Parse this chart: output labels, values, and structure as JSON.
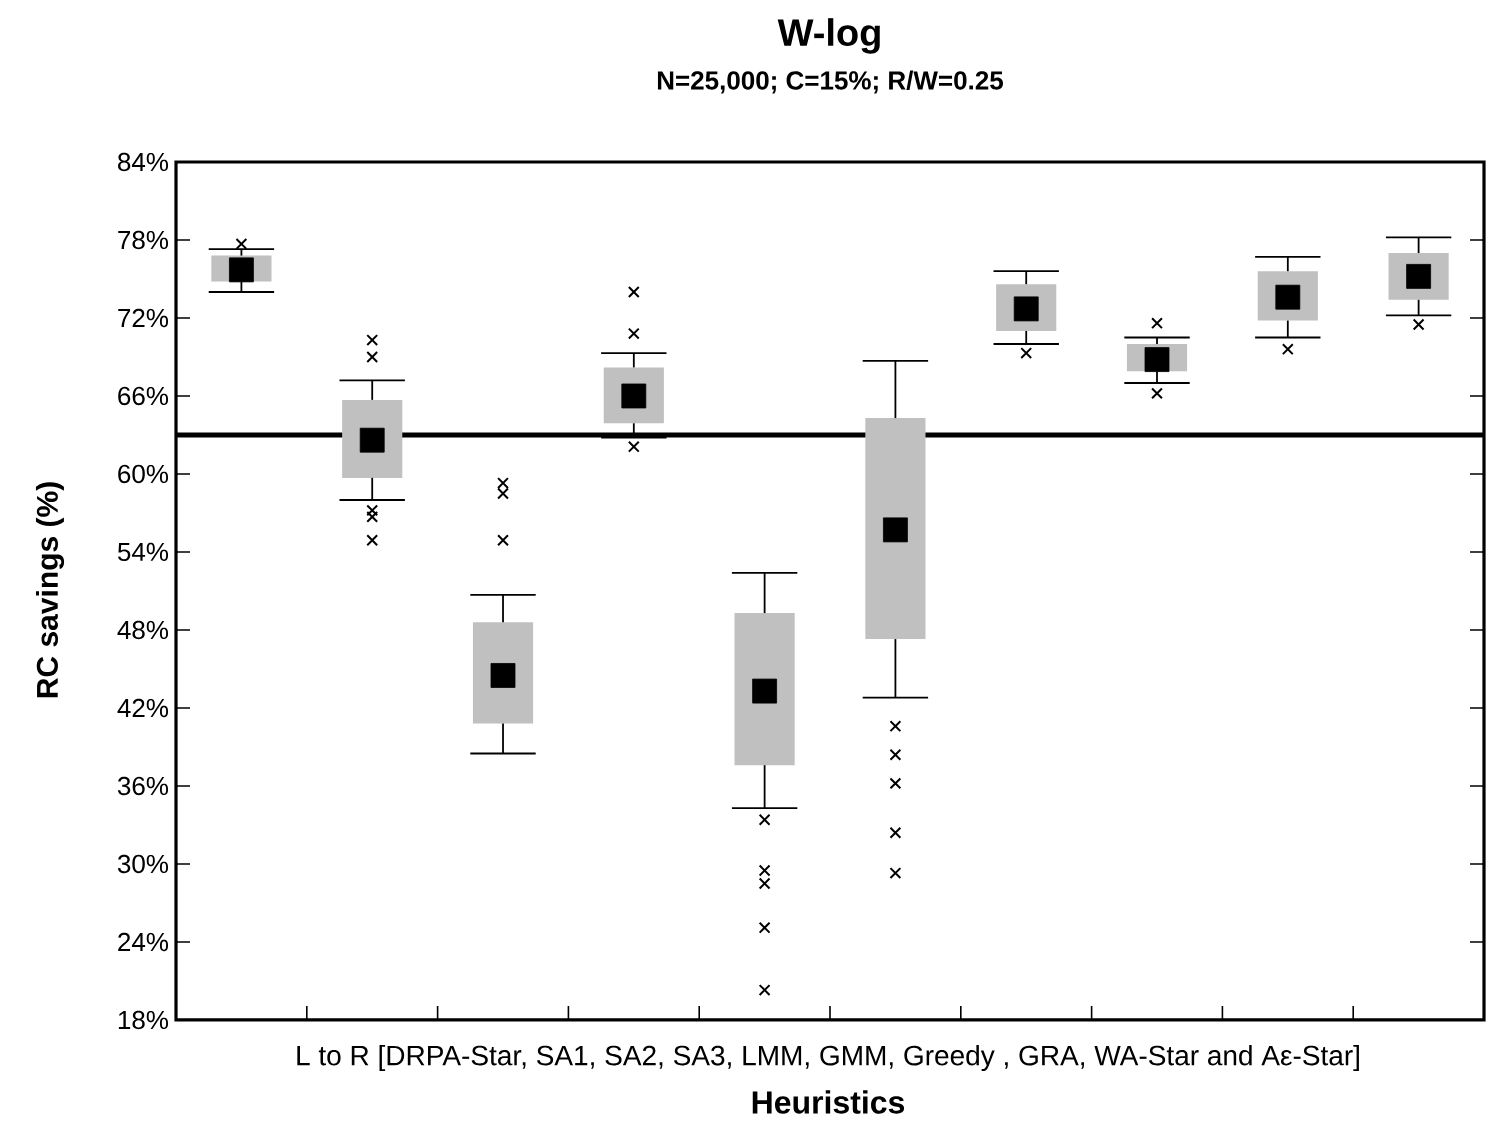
{
  "chart_data": {
    "type": "box",
    "title": "W-log",
    "subtitle": "N=25,000; C=15%; R/W=0.25",
    "xlabel": "Heuristics",
    "ylabel": "RC savings (%)",
    "annotations": [
      "L to R [DRPA-Star, SA1, SA2, SA3, LMM, GMM, Greedy , GRA, WA-Star and Aε-Star]"
    ],
    "categories": [
      null,
      null,
      null,
      null,
      null,
      null,
      null,
      null,
      null,
      null
    ],
    "series": [
      {
        "color": "#c0c0c0",
        "boxes": [
          {
            "low": 74.0,
            "q1": 74.8,
            "median": 75.7,
            "q3": 76.8,
            "high": 77.3,
            "outliers": [
              77.7
            ]
          },
          {
            "low": 58.0,
            "q1": 59.7,
            "median": 62.6,
            "q3": 65.7,
            "high": 67.2,
            "outliers": [
              70.3,
              69.0,
              57.2,
              56.7,
              54.9
            ]
          },
          {
            "low": 38.5,
            "q1": 40.8,
            "median": 44.5,
            "q3": 48.6,
            "high": 50.7,
            "outliers": [
              59.3,
              58.5,
              54.9
            ]
          },
          {
            "low": 62.8,
            "q1": 63.9,
            "median": 66.0,
            "q3": 68.2,
            "high": 69.3,
            "outliers": [
              74.0,
              70.8,
              62.1
            ]
          },
          {
            "low": 34.3,
            "q1": 37.6,
            "median": 43.3,
            "q3": 49.3,
            "high": 52.4,
            "outliers": [
              33.4,
              29.5,
              28.5,
              25.1,
              20.3
            ]
          },
          {
            "low": 42.8,
            "q1": 47.3,
            "median": 55.7,
            "q3": 64.3,
            "high": 68.7,
            "outliers": [
              40.6,
              38.4,
              36.2,
              32.4,
              29.3
            ]
          },
          {
            "low": 70.0,
            "q1": 71.0,
            "median": 72.7,
            "q3": 74.6,
            "high": 75.6,
            "outliers": [
              69.3
            ]
          },
          {
            "low": 67.0,
            "q1": 67.9,
            "median": 68.8,
            "q3": 70.0,
            "high": 70.5,
            "outliers": [
              71.6,
              66.2
            ]
          },
          {
            "low": 70.5,
            "q1": 71.8,
            "median": 73.6,
            "q3": 75.6,
            "high": 76.7,
            "outliers": [
              69.6
            ]
          },
          {
            "low": 72.2,
            "q1": 73.4,
            "median": 75.2,
            "q3": 77.0,
            "high": 78.2,
            "outliers": [
              71.5
            ]
          }
        ]
      }
    ],
    "ylim": [
      18,
      84
    ],
    "yticks": [
      {
        "value": 18,
        "label": "18%"
      },
      {
        "value": 24,
        "label": "24%"
      },
      {
        "value": 30,
        "label": "30%"
      },
      {
        "value": 36,
        "label": "36%"
      },
      {
        "value": 42,
        "label": "42%"
      },
      {
        "value": 48,
        "label": "48%"
      },
      {
        "value": 54,
        "label": "54%"
      },
      {
        "value": 60,
        "label": "60%"
      },
      {
        "value": 66,
        "label": "66%"
      },
      {
        "value": 72,
        "label": "72%"
      },
      {
        "value": 78,
        "label": "78%"
      },
      {
        "value": 84,
        "label": "84%"
      }
    ],
    "ref_lines": [
      {
        "axis": "y",
        "value": 63,
        "color": "#000000"
      }
    ],
    "tick_labels": "y"
  }
}
